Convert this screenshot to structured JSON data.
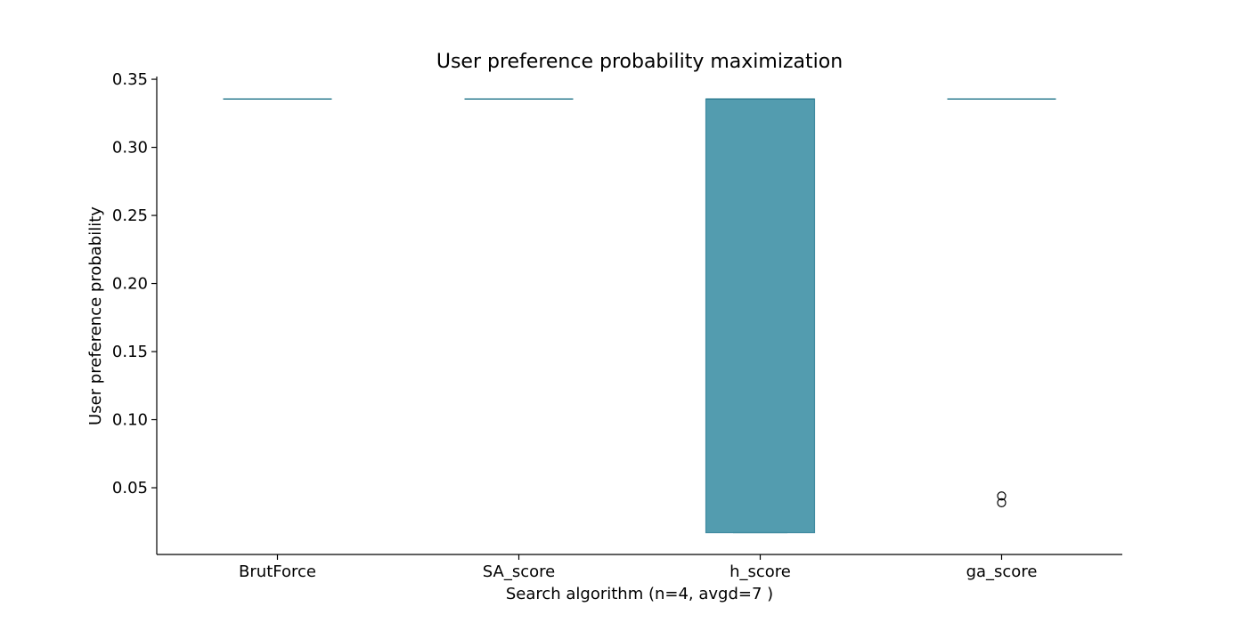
{
  "colors": {
    "box_fill": "#539caf",
    "box_edge": "#3f8aa0",
    "median": "#2f7d92",
    "flier": "#000000"
  },
  "chart_data": {
    "type": "box",
    "title": "User preference probability maximization",
    "xlabel": "Search algorithm (n=4, avgd=7 )",
    "ylabel": "User preference probability",
    "categories": [
      "BrutForce",
      "SA_score",
      "h_score",
      "ga_score"
    ],
    "ylim": [
      0.001,
      0.352
    ],
    "yticks": [
      0.05,
      0.1,
      0.15,
      0.2,
      0.25,
      0.3,
      0.35
    ],
    "ytick_labels": [
      "0.05",
      "0.10",
      "0.15",
      "0.20",
      "0.25",
      "0.30",
      "0.35"
    ],
    "grid": false,
    "boxes": [
      {
        "category": "BrutForce",
        "q1": 0.3355,
        "median": 0.3355,
        "q3": 0.3355,
        "whisker_low": 0.3355,
        "whisker_high": 0.3355,
        "fliers": []
      },
      {
        "category": "SA_score",
        "q1": 0.3355,
        "median": 0.3355,
        "q3": 0.3355,
        "whisker_low": 0.3355,
        "whisker_high": 0.3355,
        "fliers": []
      },
      {
        "category": "h_score",
        "q1": 0.017,
        "median": 0.3355,
        "q3": 0.3355,
        "whisker_low": 0.017,
        "whisker_high": 0.3355,
        "fliers": []
      },
      {
        "category": "ga_score",
        "q1": 0.3355,
        "median": 0.3355,
        "q3": 0.3355,
        "whisker_low": 0.3355,
        "whisker_high": 0.3355,
        "fliers": [
          0.044,
          0.039
        ]
      }
    ]
  }
}
